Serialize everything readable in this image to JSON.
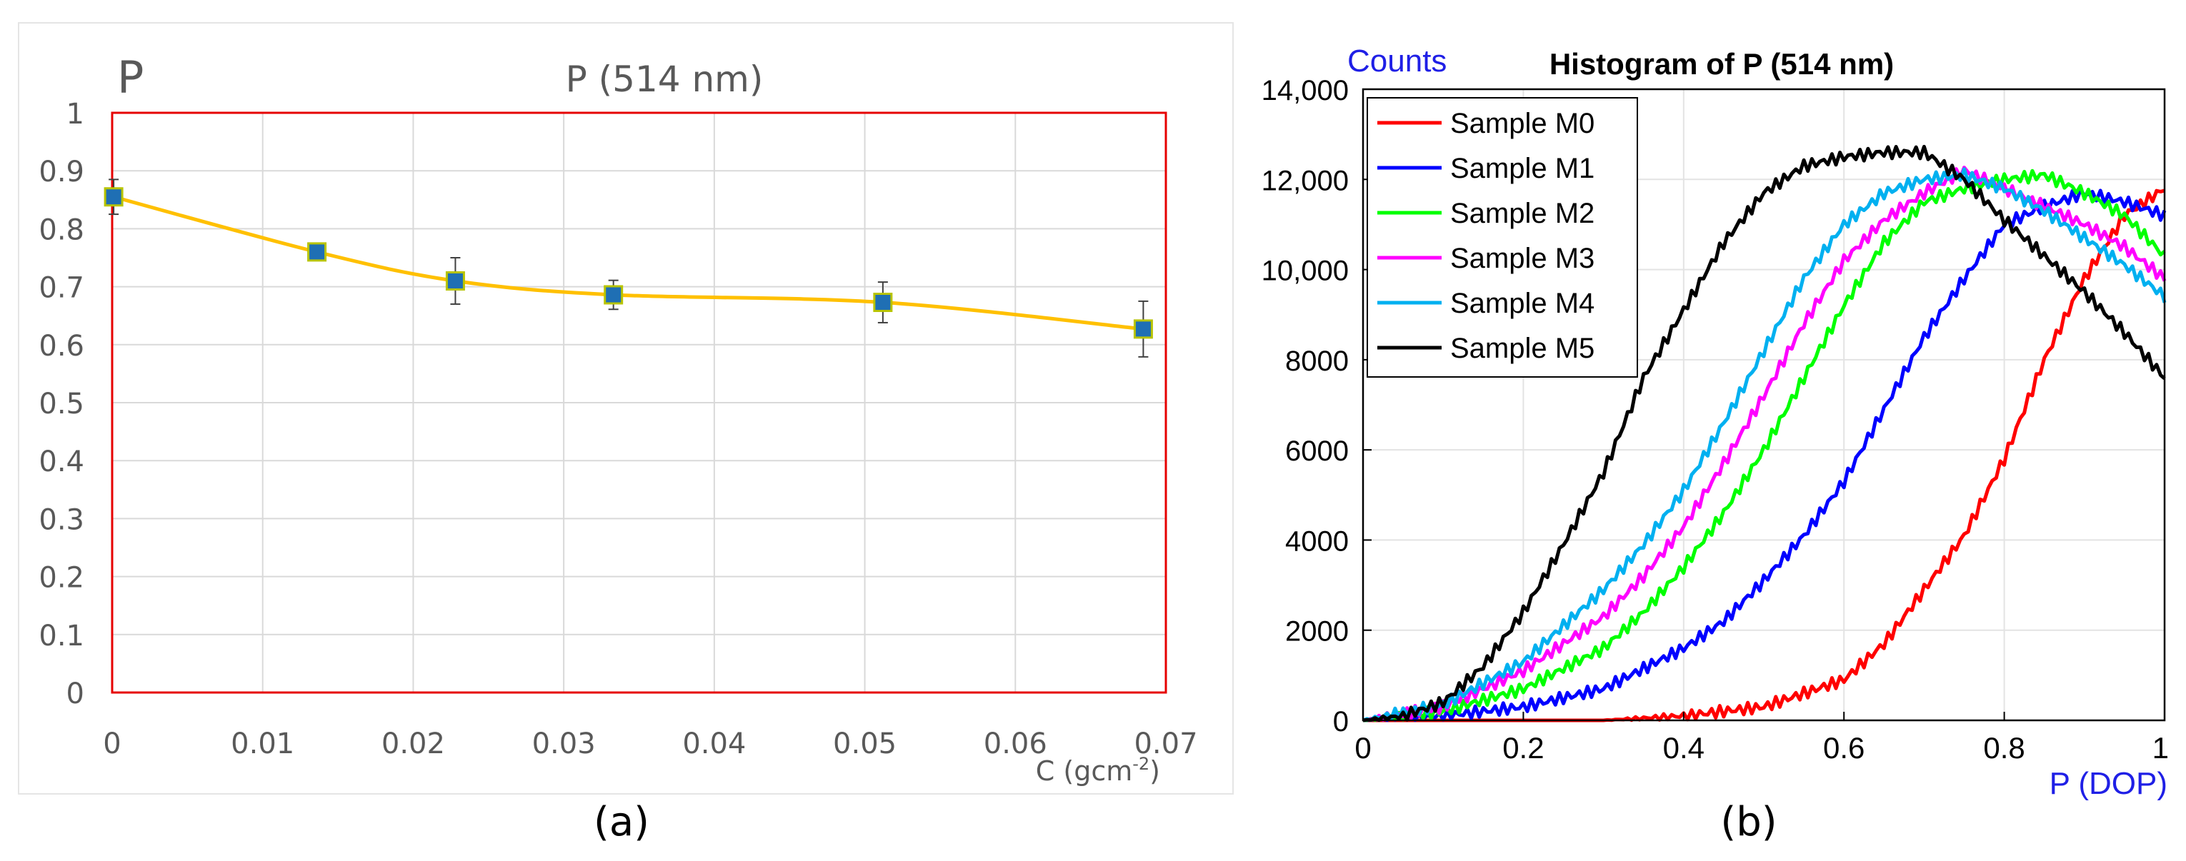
{
  "captions": {
    "a": "(a)",
    "b": "(b)"
  },
  "colors": {
    "a_frame": "#E60000",
    "a_line": "#FFC000",
    "a_marker": "#1F6FB4",
    "a_marker_edge": "#B8C400",
    "b_label_blue": "#1F1FE6"
  },
  "chart_data": [
    {
      "type": "line",
      "title": "P (514 nm)",
      "ylabel": "P",
      "xlabel": "C (gcm",
      "xlabel_sup": "-2",
      "xlabel_close": ")",
      "xlim": [
        0,
        0.07
      ],
      "ylim": [
        0,
        1
      ],
      "x_ticks": [
        "0",
        "0.01",
        "0.02",
        "0.03",
        "0.04",
        "0.05",
        "0.06",
        "0.07"
      ],
      "y_ticks": [
        "0",
        "0.1",
        "0.2",
        "0.3",
        "0.4",
        "0.5",
        "0.6",
        "0.7",
        "0.8",
        "0.9",
        "1"
      ],
      "grid": true,
      "series": [
        {
          "x": [
            0.0001,
            0.0136,
            0.0228,
            0.0333,
            0.0512,
            0.0685
          ],
          "y": [
            0.855,
            0.76,
            0.71,
            0.686,
            0.673,
            0.627
          ],
          "error": [
            0.03,
            0.012,
            0.04,
            0.025,
            0.035,
            0.048
          ]
        }
      ]
    },
    {
      "type": "line",
      "title": "Histogram of P (514 nm)",
      "ylabel": "Counts",
      "xlabel": "P (DOP)",
      "xlim": [
        0,
        1
      ],
      "ylim": [
        0,
        14000
      ],
      "x_ticks": [
        "0",
        "0.2",
        "0.4",
        "0.6",
        "0.8",
        "1"
      ],
      "y_ticks": [
        "0",
        "2000",
        "4000",
        "6000",
        "8000",
        "10,000",
        "12,000",
        "14,000"
      ],
      "grid": true,
      "legend": "top-left",
      "series": [
        {
          "name": "Sample M0",
          "color": "#FF0000",
          "x": [
            0,
            0.3,
            0.4,
            0.5,
            0.55,
            0.6,
            0.65,
            0.7,
            0.75,
            0.8,
            0.85,
            0.9,
            0.95,
            1.0
          ],
          "y": [
            0,
            0,
            100,
            300,
            600,
            900,
            1700,
            2900,
            4100,
            5800,
            8000,
            9800,
            11200,
            11800
          ]
        },
        {
          "name": "Sample M1",
          "color": "#0000FF",
          "x": [
            0,
            0.1,
            0.2,
            0.3,
            0.4,
            0.45,
            0.5,
            0.55,
            0.6,
            0.65,
            0.7,
            0.75,
            0.8,
            0.85,
            0.9,
            0.95,
            1.0
          ],
          "y": [
            0,
            100,
            300,
            700,
            1600,
            2200,
            3100,
            4100,
            5300,
            6900,
            8500,
            9800,
            11000,
            11400,
            11700,
            11500,
            11200
          ]
        },
        {
          "name": "Sample M2",
          "color": "#00FF00",
          "x": [
            0,
            0.1,
            0.2,
            0.3,
            0.35,
            0.4,
            0.45,
            0.5,
            0.55,
            0.6,
            0.65,
            0.7,
            0.75,
            0.8,
            0.85,
            0.9,
            0.95,
            1.0
          ],
          "y": [
            0,
            200,
            700,
            1600,
            2400,
            3400,
            4600,
            6000,
            7600,
            9200,
            10600,
            11500,
            11800,
            12000,
            12100,
            11700,
            11200,
            10300
          ]
        },
        {
          "name": "Sample M3",
          "color": "#FF00FF",
          "x": [
            0,
            0.1,
            0.2,
            0.3,
            0.35,
            0.4,
            0.45,
            0.5,
            0.55,
            0.6,
            0.65,
            0.7,
            0.75,
            0.8,
            0.85,
            0.9,
            0.95,
            1.0
          ],
          "y": [
            0,
            300,
            1100,
            2300,
            3200,
            4300,
            5700,
            7200,
            8800,
            10200,
            11100,
            11700,
            12200,
            11800,
            11400,
            11000,
            10500,
            9800
          ]
        },
        {
          "name": "Sample M4",
          "color": "#00B0F0",
          "x": [
            0,
            0.1,
            0.2,
            0.3,
            0.35,
            0.4,
            0.45,
            0.5,
            0.55,
            0.6,
            0.65,
            0.7,
            0.75,
            0.8,
            0.85,
            0.9,
            0.95,
            1.0
          ],
          "y": [
            0,
            350,
            1300,
            2900,
            3900,
            5100,
            6600,
            8200,
            9800,
            11000,
            11700,
            12000,
            12100,
            11800,
            11300,
            10700,
            10100,
            9400
          ]
        },
        {
          "name": "Sample M5",
          "color": "#000000",
          "x": [
            0,
            0.05,
            0.1,
            0.15,
            0.2,
            0.25,
            0.3,
            0.35,
            0.4,
            0.45,
            0.5,
            0.55,
            0.6,
            0.65,
            0.7,
            0.75,
            0.8,
            0.85,
            0.9,
            0.95,
            1.0
          ],
          "y": [
            0,
            100,
            400,
            1200,
            2400,
            3900,
            5500,
            7600,
            9100,
            10600,
            11700,
            12300,
            12500,
            12600,
            12600,
            12000,
            11100,
            10300,
            9500,
            8600,
            7600
          ]
        }
      ]
    }
  ]
}
